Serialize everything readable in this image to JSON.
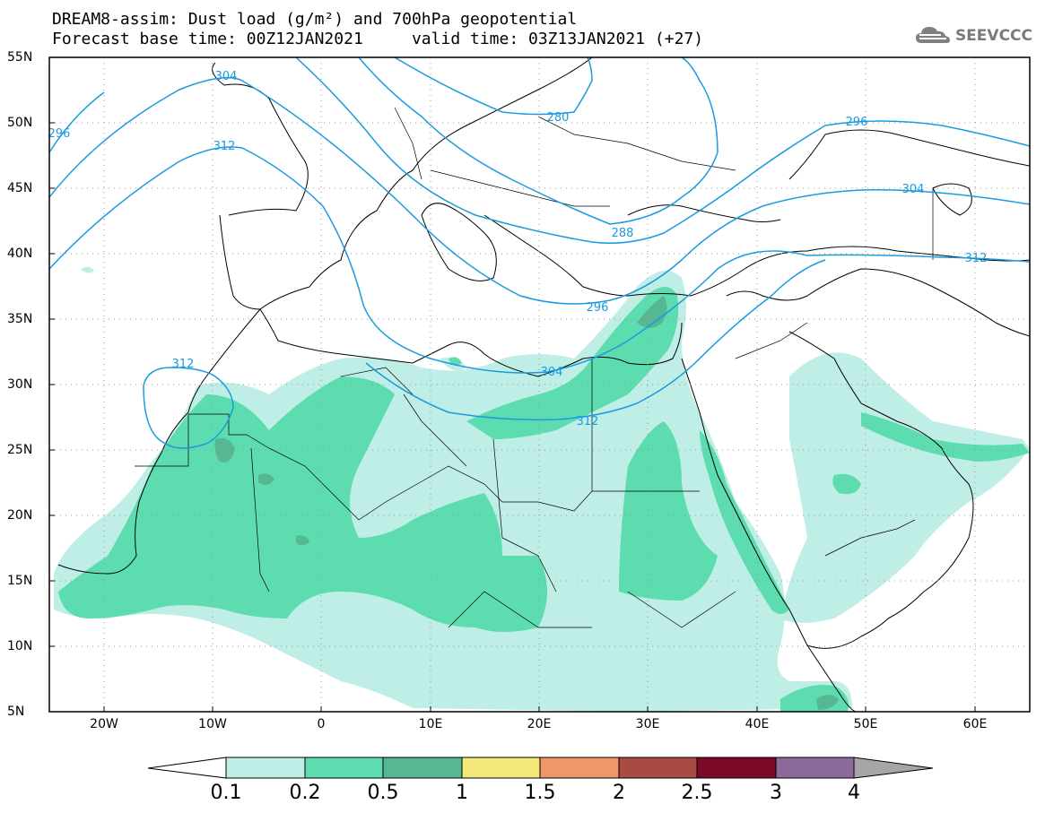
{
  "header": {
    "line1": "DREAM8-assim: Dust load (g/m²) and 700hPa geopotential",
    "line2": "Forecast base time: 00Z12JAN2021     valid time: 03Z13JAN2021 (+27)"
  },
  "logo": {
    "text": "SEEVCCC",
    "icon": "cloud-icon"
  },
  "map": {
    "lat_labels": [
      "55N",
      "50N",
      "45N",
      "40N",
      "35N",
      "30N",
      "25N",
      "20N",
      "15N",
      "10N",
      "5N"
    ],
    "lon_labels": [
      "20W",
      "10W",
      "0",
      "10E",
      "20E",
      "30E",
      "40E",
      "50E",
      "60E"
    ],
    "lon_range": [
      -25,
      65
    ],
    "lat_range": [
      5,
      55
    ],
    "gridlines": "dotted",
    "contour_labels": [
      {
        "text": "304"
      },
      {
        "text": "296"
      },
      {
        "text": "312"
      },
      {
        "text": "280"
      },
      {
        "text": "288"
      },
      {
        "text": "296"
      },
      {
        "text": "304"
      },
      {
        "text": "312"
      },
      {
        "text": "296"
      },
      {
        "text": "304"
      },
      {
        "text": "312"
      },
      {
        "text": "312"
      }
    ],
    "contour_color": "#1a9be0",
    "fill_colors": {
      "c01": "#bfeee6",
      "c02": "#5ddcb0",
      "c05": "#55b893"
    }
  },
  "colorbar": {
    "labels": [
      "0.1",
      "0.2",
      "0.5",
      "1",
      "1.5",
      "2",
      "2.5",
      "3",
      "4"
    ],
    "colors": [
      "#bfeee6",
      "#5ddcb0",
      "#55b893",
      "#f4e87a",
      "#f0976a",
      "#a84b43",
      "#7c0a26",
      "#8c6a9a",
      "#a6a6a6"
    ]
  }
}
